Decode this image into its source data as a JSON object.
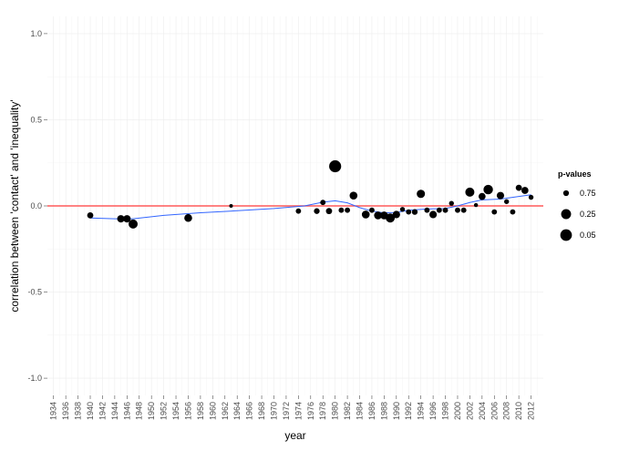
{
  "chart_data": {
    "type": "scatter",
    "xlabel": "year",
    "ylabel": "correlation between 'contact' and 'inequality'",
    "xlim": [
      1933,
      2014
    ],
    "ylim": [
      -1.1,
      1.1
    ],
    "x_ticks": [
      "1934",
      "1936",
      "1938",
      "1940",
      "1942",
      "1944",
      "1946",
      "1948",
      "1950",
      "1952",
      "1954",
      "1956",
      "1958",
      "1960",
      "1962",
      "1964",
      "1966",
      "1968",
      "1970",
      "1972",
      "1974",
      "1976",
      "1978",
      "1980",
      "1982",
      "1984",
      "1986",
      "1988",
      "1990",
      "1992",
      "1994",
      "1996",
      "1998",
      "2000",
      "2002",
      "2004",
      "2006",
      "2008",
      "2010",
      "2012"
    ],
    "y_ticks": [
      "1.0",
      "0.5",
      "0.0",
      "-0.5",
      "-1.0"
    ],
    "y_tick_values": [
      1.0,
      0.5,
      0.0,
      -0.5,
      -1.0
    ],
    "grid": true,
    "reference_line": {
      "y": 0.0,
      "color": "#ff5a5a"
    },
    "smooth_line_color": "#3366ff",
    "legend": {
      "title": "p-values",
      "placement": "right",
      "entries": [
        {
          "label": "0.75",
          "p": 0.75
        },
        {
          "label": "0.25",
          "p": 0.25
        },
        {
          "label": "0.05",
          "p": 0.05
        }
      ]
    },
    "points": [
      {
        "year": 1940,
        "r": -0.055,
        "p": 0.7
      },
      {
        "year": 1945,
        "r": -0.075,
        "p": 0.55
      },
      {
        "year": 1946,
        "r": -0.075,
        "p": 0.55
      },
      {
        "year": 1947,
        "r": -0.105,
        "p": 0.35
      },
      {
        "year": 1956,
        "r": -0.07,
        "p": 0.5
      },
      {
        "year": 1963,
        "r": 0.0,
        "p": 1.0
      },
      {
        "year": 1974,
        "r": -0.03,
        "p": 0.8
      },
      {
        "year": 1977,
        "r": -0.03,
        "p": 0.75
      },
      {
        "year": 1978,
        "r": 0.02,
        "p": 0.8
      },
      {
        "year": 1979,
        "r": -0.03,
        "p": 0.7
      },
      {
        "year": 1980,
        "r": 0.23,
        "p": 0.0
      },
      {
        "year": 1981,
        "r": -0.025,
        "p": 0.8
      },
      {
        "year": 1982,
        "r": -0.025,
        "p": 0.8
      },
      {
        "year": 1983,
        "r": 0.06,
        "p": 0.5
      },
      {
        "year": 1985,
        "r": -0.05,
        "p": 0.5
      },
      {
        "year": 1986,
        "r": -0.025,
        "p": 0.8
      },
      {
        "year": 1987,
        "r": -0.055,
        "p": 0.5
      },
      {
        "year": 1988,
        "r": -0.055,
        "p": 0.5
      },
      {
        "year": 1989,
        "r": -0.07,
        "p": 0.35
      },
      {
        "year": 1990,
        "r": -0.05,
        "p": 0.55
      },
      {
        "year": 1991,
        "r": -0.02,
        "p": 0.85
      },
      {
        "year": 1992,
        "r": -0.035,
        "p": 0.8
      },
      {
        "year": 1993,
        "r": -0.035,
        "p": 0.75
      },
      {
        "year": 1994,
        "r": 0.07,
        "p": 0.45
      },
      {
        "year": 1995,
        "r": -0.025,
        "p": 0.8
      },
      {
        "year": 1996,
        "r": -0.05,
        "p": 0.55
      },
      {
        "year": 1997,
        "r": -0.025,
        "p": 0.8
      },
      {
        "year": 1998,
        "r": -0.025,
        "p": 0.8
      },
      {
        "year": 1999,
        "r": 0.015,
        "p": 0.85
      },
      {
        "year": 2000,
        "r": -0.025,
        "p": 0.8
      },
      {
        "year": 2001,
        "r": -0.025,
        "p": 0.8
      },
      {
        "year": 2002,
        "r": 0.08,
        "p": 0.35
      },
      {
        "year": 2003,
        "r": 0.005,
        "p": 0.95
      },
      {
        "year": 2004,
        "r": 0.055,
        "p": 0.6
      },
      {
        "year": 2005,
        "r": 0.095,
        "p": 0.3
      },
      {
        "year": 2006,
        "r": -0.035,
        "p": 0.8
      },
      {
        "year": 2007,
        "r": 0.06,
        "p": 0.55
      },
      {
        "year": 2008,
        "r": 0.025,
        "p": 0.85
      },
      {
        "year": 2009,
        "r": -0.035,
        "p": 0.8
      },
      {
        "year": 2010,
        "r": 0.105,
        "p": 0.7
      },
      {
        "year": 2011,
        "r": 0.09,
        "p": 0.6
      },
      {
        "year": 2012,
        "r": 0.05,
        "p": 0.85
      }
    ],
    "smooth": [
      {
        "year": 1940,
        "r": -0.07
      },
      {
        "year": 1944,
        "r": -0.075
      },
      {
        "year": 1947,
        "r": -0.075
      },
      {
        "year": 1952,
        "r": -0.055
      },
      {
        "year": 1958,
        "r": -0.04
      },
      {
        "year": 1964,
        "r": -0.028
      },
      {
        "year": 1970,
        "r": -0.015
      },
      {
        "year": 1975,
        "r": 0.0
      },
      {
        "year": 1978,
        "r": 0.022
      },
      {
        "year": 1980,
        "r": 0.03
      },
      {
        "year": 1982,
        "r": 0.018
      },
      {
        "year": 1984,
        "r": -0.01
      },
      {
        "year": 1986,
        "r": -0.03
      },
      {
        "year": 1988,
        "r": -0.04
      },
      {
        "year": 1990,
        "r": -0.038
      },
      {
        "year": 1992,
        "r": -0.025
      },
      {
        "year": 1995,
        "r": -0.018
      },
      {
        "year": 1998,
        "r": -0.015
      },
      {
        "year": 2000,
        "r": 0.0
      },
      {
        "year": 2002,
        "r": 0.02
      },
      {
        "year": 2004,
        "r": 0.035
      },
      {
        "year": 2007,
        "r": 0.04
      },
      {
        "year": 2010,
        "r": 0.055
      },
      {
        "year": 2012,
        "r": 0.065
      }
    ]
  }
}
